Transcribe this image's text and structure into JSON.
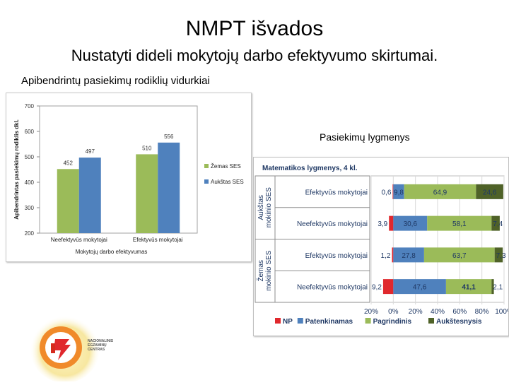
{
  "slide": {
    "title": "NMPT išvados",
    "subtitle": "Nustatyti dideli mokytojų darbo efektyvumo skirtumai.",
    "left_caption": "Apibendrintų pasiekimų rodiklių vidurkiai",
    "right_caption": "Pasiekimų lygmenys"
  },
  "logo": {
    "lines": [
      "NACIONALINIS",
      "EGZAMINŲ",
      "CENTRAS"
    ]
  },
  "chart_data": [
    {
      "type": "bar",
      "categories": [
        "Neefektyvūs mokytojai",
        "Efektyvūs mokytojai"
      ],
      "series": [
        {
          "name": "Žemas SES",
          "values": [
            452,
            510
          ],
          "color": "#9bbb59"
        },
        {
          "name": "Aukštas SES",
          "values": [
            497,
            556
          ],
          "color": "#4f81bd"
        }
      ],
      "xlabel": "Mokytojų darbo efektyvumas",
      "ylabel": "Apibendrintas pasiekimų rodiklis dkl.",
      "ylim": [
        200,
        700
      ],
      "yticks": [
        "200",
        "300",
        "400",
        "500",
        "600",
        "700"
      ],
      "grid": false,
      "legend": "right"
    },
    {
      "type": "bar",
      "orientation": "horizontal-stacked",
      "title": "Matematikos lygmenys, 4 kl.",
      "groups": [
        "Aukštas mokinio SES",
        "Žemas mokinio SES"
      ],
      "categories": [
        "Efektyvūs mokytojai",
        "Neefektyvūs mokytojai",
        "Efektyvūs mokytojai",
        "Neefektyvūs mokytojai"
      ],
      "series": [
        {
          "name": "NP",
          "color": "#e0282d",
          "values": [
            0.6,
            3.9,
            1.2,
            9.2
          ],
          "labels": [
            "0,6",
            "3,9",
            "1,2",
            "9,2"
          ]
        },
        {
          "name": "Patenkinamas",
          "color": "#4f81bd",
          "values": [
            9.8,
            30.6,
            27.8,
            47.6
          ],
          "labels": [
            "9,8",
            "30,6",
            "27,8",
            "47,6"
          ]
        },
        {
          "name": "Pagrindinis",
          "color": "#9bbb59",
          "values": [
            64.9,
            58.1,
            63.7,
            41.1
          ],
          "labels": [
            "64,9",
            "58,1",
            "63,7",
            "41,1"
          ]
        },
        {
          "name": "Aukštesnysis",
          "color": "#4f6228",
          "values": [
            24.6,
            7.4,
            7.3,
            2.1
          ],
          "labels": [
            "24,6",
            "7,4",
            "7,3",
            "2,1"
          ]
        }
      ],
      "xlim": [
        -20,
        100
      ],
      "xticks": [
        "20%",
        "0%",
        "20%",
        "40%",
        "60%",
        "80%",
        "100%"
      ],
      "legend": "bottom"
    }
  ]
}
